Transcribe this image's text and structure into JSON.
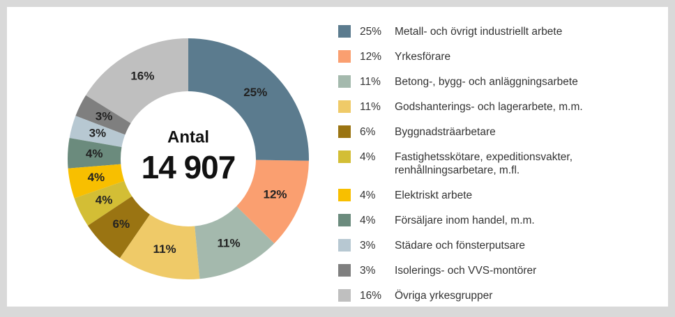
{
  "chart_data": {
    "type": "donut",
    "center_title": "Antal",
    "center_value": "14 907",
    "categories": [
      "Metall- och övrigt industriellt arbete",
      "Yrkesförare",
      "Betong-, bygg- och anläggningsarbete",
      "Godshanterings- och lagerarbete, m.m.",
      "Byggnadsträarbetare",
      "Fastighetsskötare, expeditionsvakter, renhållningsarbetare, m.fl.",
      "Elektriskt arbete",
      "Försäljare inom handel, m.m.",
      "Städare och fönsterputsare",
      "Isolerings- och VVS-montörer",
      "Övriga yrkesgrupper"
    ],
    "values": [
      25,
      12,
      11,
      11,
      6,
      4,
      4,
      4,
      3,
      3,
      16
    ],
    "value_labels": [
      "25%",
      "12%",
      "11%",
      "11%",
      "6%",
      "4%",
      "4%",
      "4%",
      "3%",
      "3%",
      "16%"
    ],
    "colors": [
      "#5b7b8e",
      "#fa9f70",
      "#a4b9ad",
      "#efca68",
      "#9a7412",
      "#d3be35",
      "#f8bf00",
      "#6b8b7d",
      "#b7c8d2",
      "#7f7f7f",
      "#bfbfbf"
    ],
    "legend": "right"
  }
}
